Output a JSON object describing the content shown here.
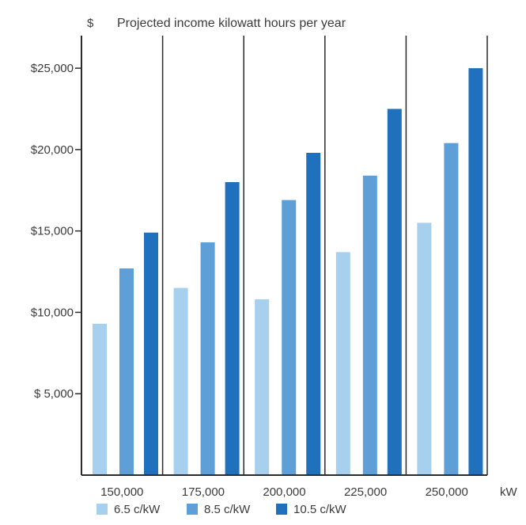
{
  "chart_data": {
    "type": "bar",
    "title": "Projected income kilowatt hours per year",
    "ylabel": "$",
    "xlabel": "kW",
    "categories": [
      "150,000",
      "175,000",
      "200,000",
      "225,000",
      "250,000"
    ],
    "yticks": [
      {
        "value": 5000,
        "label": "$ 5,000"
      },
      {
        "value": 10000,
        "label": "$10,000"
      },
      {
        "value": 15000,
        "label": "$15,000"
      },
      {
        "value": 20000,
        "label": "$20,000"
      },
      {
        "value": 25000,
        "label": "$25,000"
      }
    ],
    "ylim": [
      0,
      27000
    ],
    "grid": "vertical separators between categories",
    "legend_position": "bottom",
    "series": [
      {
        "name": "6.5 c/kW",
        "color": "#a7cfee",
        "values": [
          9300,
          11500,
          10800,
          13700,
          15500
        ]
      },
      {
        "name": "8.5 c/kW",
        "color": "#5f9fd7",
        "values": [
          12700,
          14300,
          16900,
          18400,
          20400
        ]
      },
      {
        "name": "10.5 c/kW",
        "color": "#1f70bd",
        "values": [
          14900,
          18000,
          19800,
          22500,
          25000
        ]
      }
    ]
  }
}
